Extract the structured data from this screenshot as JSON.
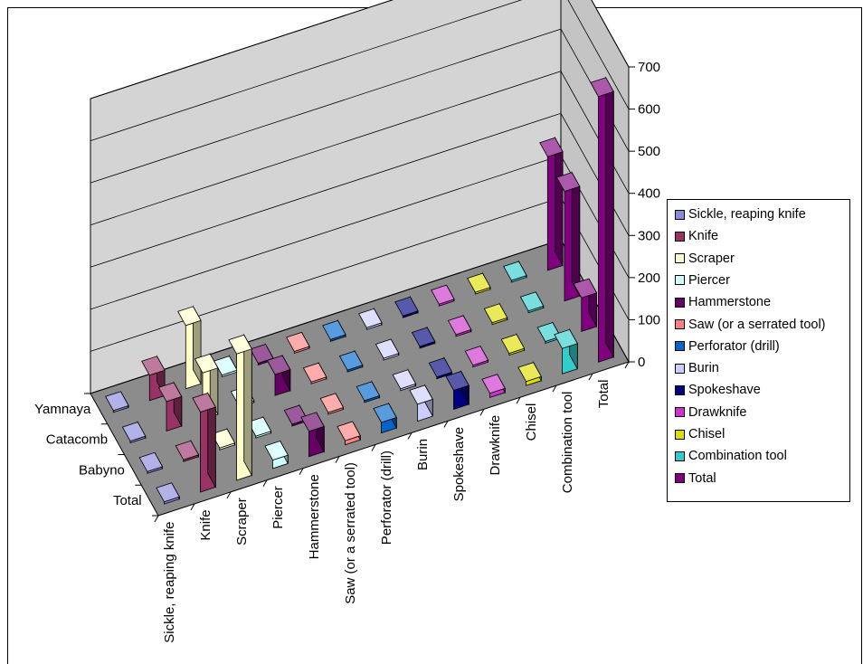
{
  "chart_data": {
    "type": "bar",
    "subtype": "3d-column",
    "title": "",
    "series_axis_labels": [
      "Yamnaya",
      "Catacomb",
      "Babyno",
      "Total"
    ],
    "categories": [
      "Sickle, reaping knife",
      "Knife",
      "Scraper",
      "Piercer",
      "Hammerstone",
      "Saw (or a serrated tool)",
      "Perforator (drill)",
      "Burin",
      "Spokeshave",
      "Drawknife",
      "Chisel",
      "Combination tool",
      "Total"
    ],
    "ylim": [
      0,
      700
    ],
    "yticks": [
      "0",
      "100",
      "200",
      "300",
      "400",
      "500",
      "600",
      "700"
    ],
    "grid": true,
    "legend_position": "right",
    "colors": [
      "#8888dd",
      "#993366",
      "#ffffcc",
      "#ccffff",
      "#660066",
      "#ff8080",
      "#0066cc",
      "#ccccff",
      "#000080",
      "#cc33cc",
      "#dddd00",
      "#33cccc",
      "#800080"
    ],
    "series": [
      {
        "name": "Yamnaya",
        "values": [
          2,
          60,
          150,
          1,
          1,
          1,
          1,
          1,
          1,
          1,
          1,
          2,
          270
        ]
      },
      {
        "name": "Catacomb",
        "values": [
          2,
          70,
          110,
          3,
          50,
          3,
          2,
          1,
          1,
          1,
          1,
          3,
          260
        ]
      },
      {
        "name": "Babyno",
        "values": [
          1,
          2,
          1,
          1,
          1,
          1,
          1,
          1,
          1,
          1,
          1,
          2,
          80
        ]
      },
      {
        "name": "Total",
        "values": [
          5,
          190,
          300,
          20,
          60,
          10,
          25,
          40,
          45,
          10,
          10,
          60,
          630
        ]
      }
    ],
    "legend": [
      "Sickle, reaping knife",
      "Knife",
      "Scraper",
      "Piercer",
      "Hammerstone",
      "Saw (or a serrated tool)",
      "Perforator (drill)",
      "Burin",
      "Spokeshave",
      "Drawknife",
      "Chisel",
      "Combination tool",
      "Total"
    ]
  }
}
